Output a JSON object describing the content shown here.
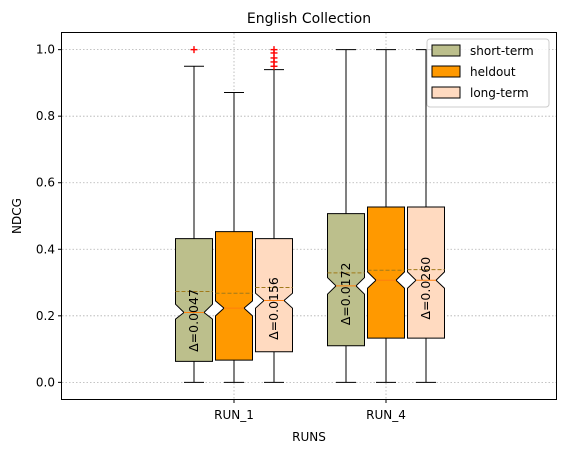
{
  "chart_data": {
    "type": "box",
    "title": "English Collection",
    "xlabel": "RUNS",
    "ylabel": "NDCG",
    "ylim": [
      -0.05,
      1.05
    ],
    "yticks": [
      0.0,
      0.2,
      0.4,
      0.6,
      0.8,
      1.0
    ],
    "ytick_labels": [
      "0.0",
      "0.2",
      "0.4",
      "0.6",
      "0.8",
      "1.0"
    ],
    "categories": [
      "RUN_1",
      "RUN_4"
    ],
    "grid": true,
    "legend_position": "top-right",
    "notched": true,
    "series": [
      {
        "name": "short-term",
        "color": "#bcbf8c",
        "boxes": [
          {
            "min": 0.0,
            "q1": 0.063,
            "median": 0.21,
            "q3": 0.432,
            "max": 0.95,
            "mean": 0.273,
            "notch_low": 0.19,
            "notch_high": 0.235,
            "outliers": [
              1.0
            ],
            "delta": "Δ=0.0047"
          },
          {
            "min": 0.0,
            "q1": 0.11,
            "median": 0.29,
            "q3": 0.507,
            "max": 1.0,
            "mean": 0.329,
            "notch_low": 0.265,
            "notch_high": 0.315,
            "outliers": [],
            "delta": "Δ=0.0172"
          }
        ]
      },
      {
        "name": "heldout",
        "color": "#ff9900",
        "boxes": [
          {
            "min": 0.0,
            "q1": 0.067,
            "median": 0.223,
            "q3": 0.453,
            "max": 0.871,
            "mean": 0.268,
            "notch_low": 0.2,
            "notch_high": 0.245,
            "outliers": [],
            "delta": ""
          },
          {
            "min": 0.0,
            "q1": 0.133,
            "median": 0.307,
            "q3": 0.527,
            "max": 1.0,
            "mean": 0.337,
            "notch_low": 0.283,
            "notch_high": 0.332,
            "outliers": [],
            "delta": ""
          }
        ]
      },
      {
        "name": "long-term",
        "color": "#ffdac0",
        "boxes": [
          {
            "min": 0.0,
            "q1": 0.092,
            "median": 0.246,
            "q3": 0.432,
            "max": 0.94,
            "mean": 0.285,
            "notch_low": 0.223,
            "notch_high": 0.268,
            "outliers": [
              0.95,
              0.963,
              0.975,
              0.99,
              1.0
            ],
            "delta": "Δ=0.0156"
          },
          {
            "min": 0.0,
            "q1": 0.133,
            "median": 0.307,
            "q3": 0.527,
            "max": 1.0,
            "mean": 0.339,
            "notch_low": 0.283,
            "notch_high": 0.332,
            "outliers": [],
            "delta": "Δ=0.0260"
          }
        ]
      }
    ]
  }
}
